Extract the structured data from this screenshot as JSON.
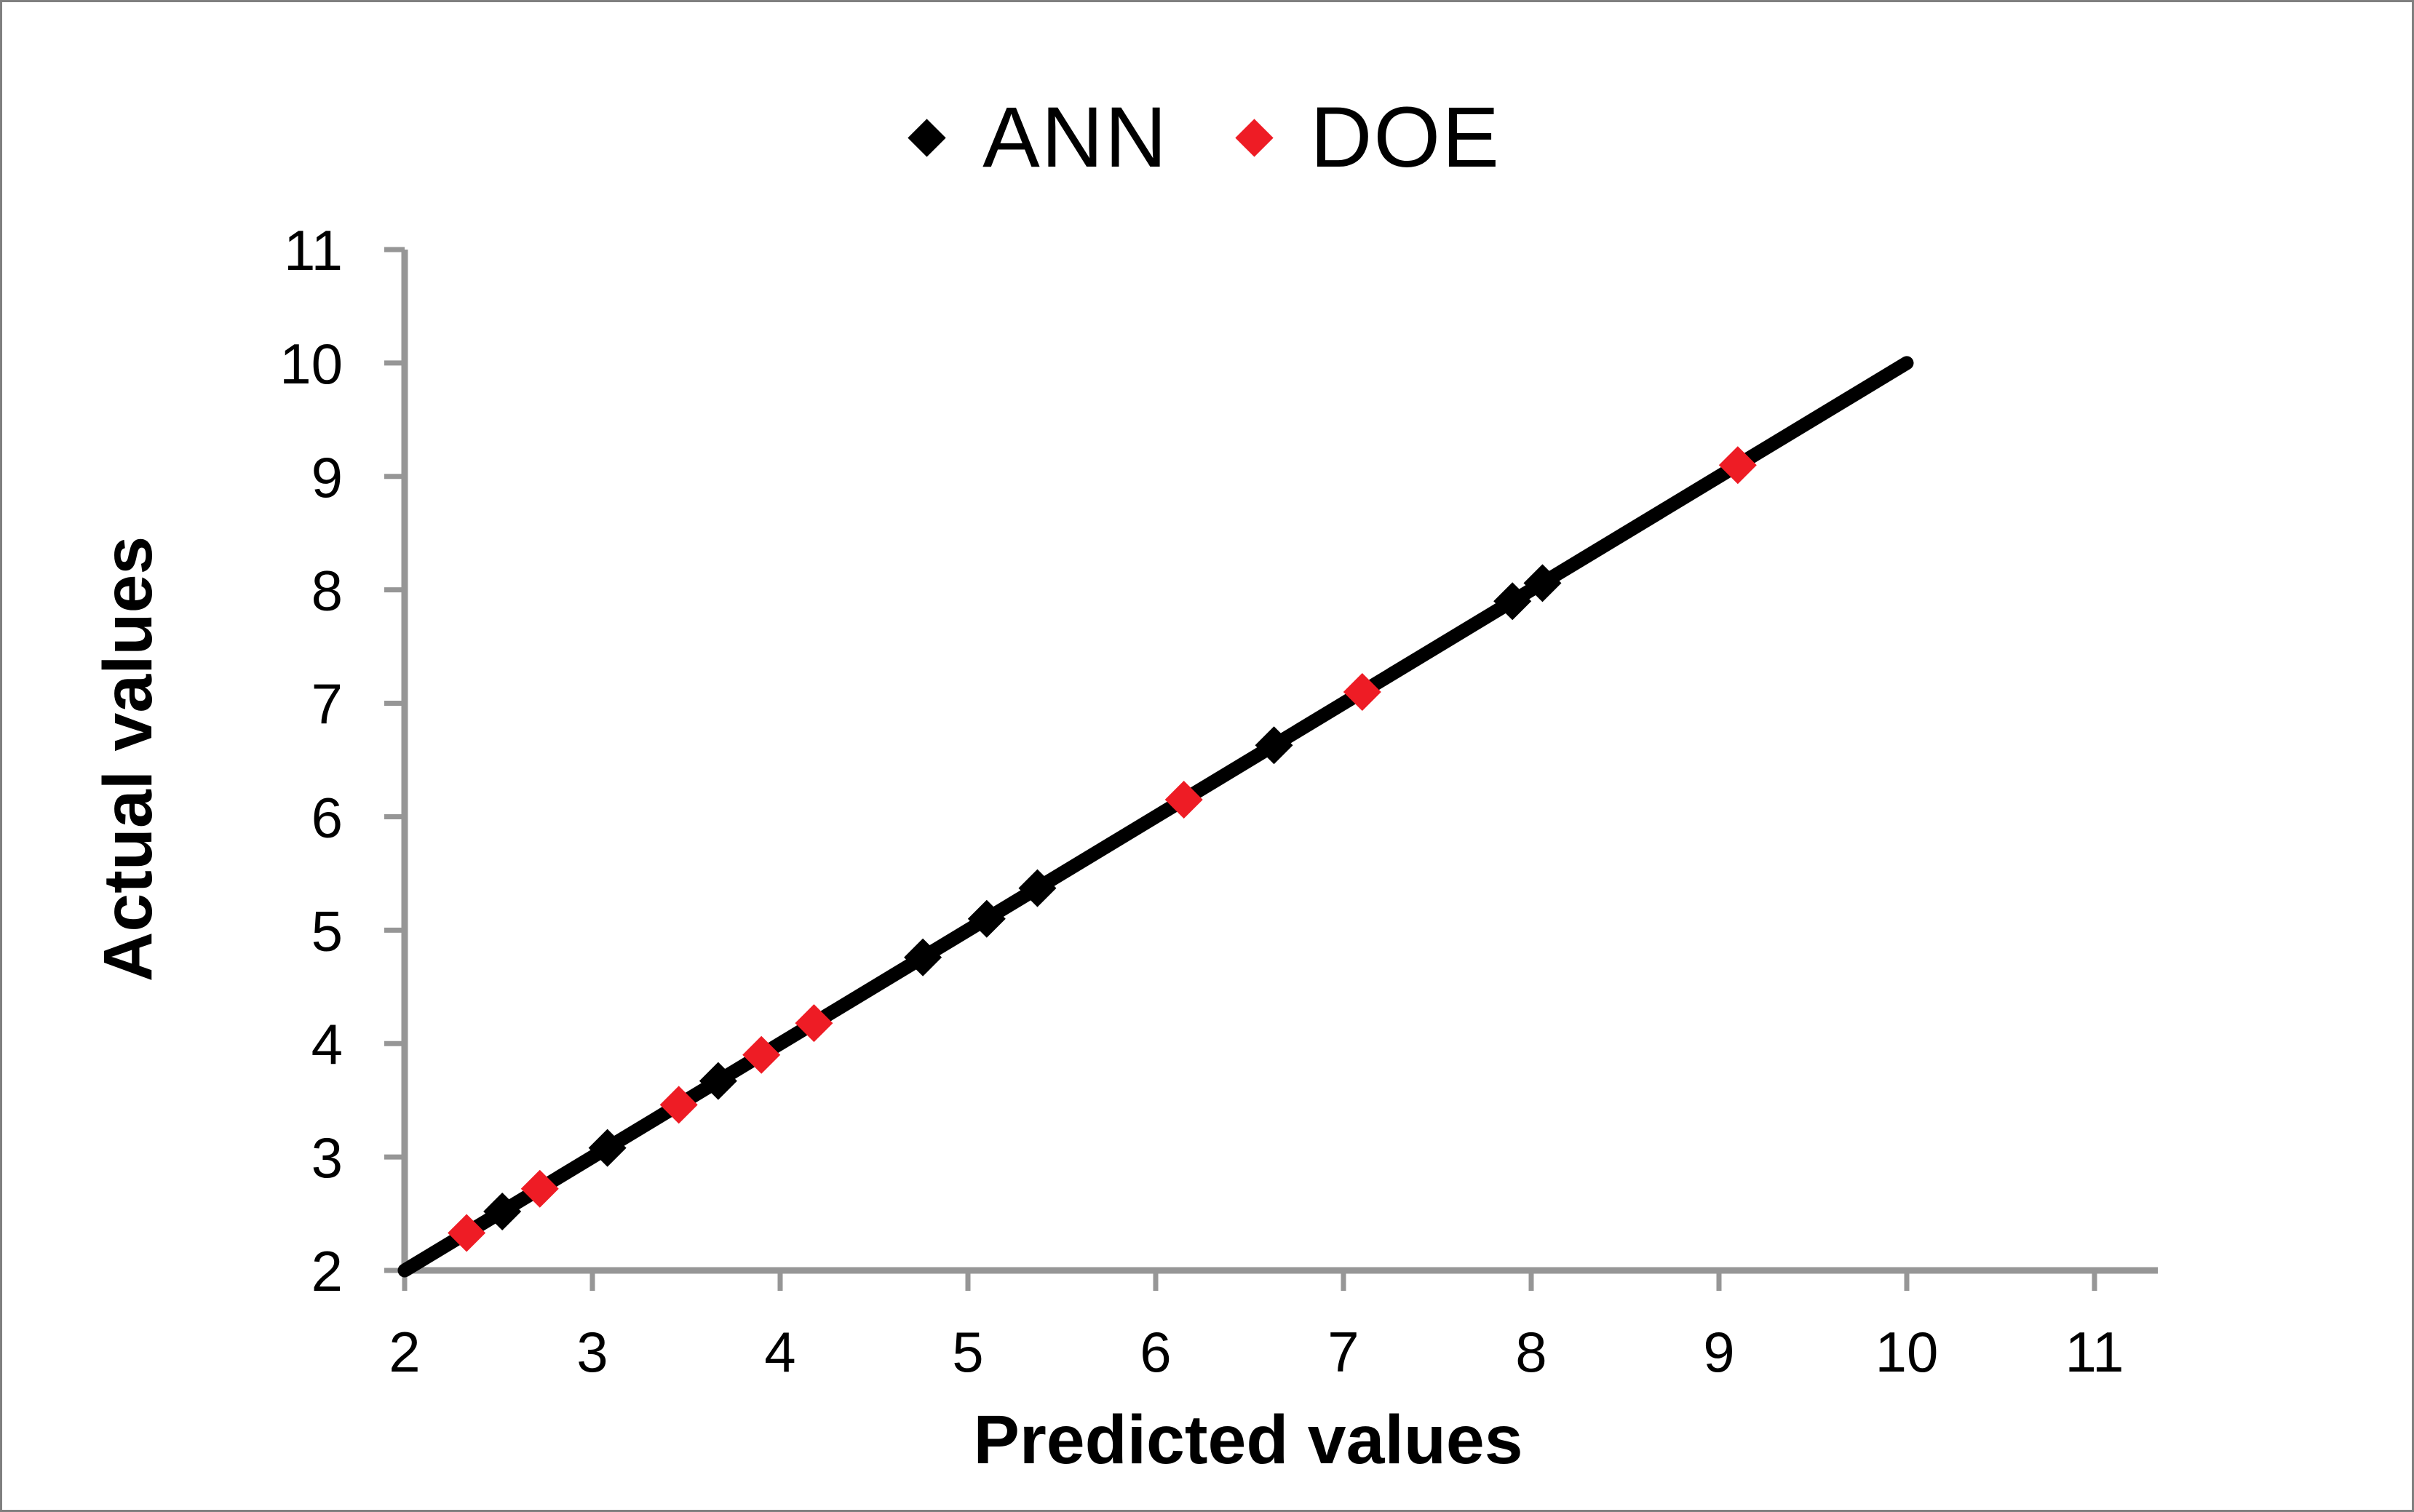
{
  "figure": {
    "kind": "scatter chart with identity line",
    "background": "#ffffff",
    "border_color": "#808080"
  },
  "legend": {
    "position": "top-center",
    "items": [
      {
        "label": "ANN",
        "color": "#000000",
        "marker": "diamond"
      },
      {
        "label": "DOE",
        "color": "#EE1C25",
        "marker": "diamond"
      }
    ]
  },
  "chart_data": {
    "type": "scatter",
    "title": "",
    "xlabel": "Predicted values",
    "ylabel": "Actual values",
    "xlim": [
      2,
      11
    ],
    "ylim": [
      2,
      11
    ],
    "x_ticks": [
      2,
      3,
      4,
      5,
      6,
      7,
      8,
      9,
      10,
      11
    ],
    "y_ticks": [
      2,
      3,
      4,
      5,
      6,
      7,
      8,
      9,
      10,
      11
    ],
    "grid": false,
    "legend_position": "top-center",
    "axis_color": "#969696",
    "tick_label_color": "#000000",
    "identity_line": {
      "x1": 2,
      "y1": 2,
      "x2": 10,
      "y2": 10,
      "color": "#000000"
    },
    "series": [
      {
        "name": "ANN",
        "marker": "diamond",
        "color": "#000000",
        "points": [
          [
            2.52,
            2.52
          ],
          [
            3.08,
            3.08
          ],
          [
            3.67,
            3.67
          ],
          [
            4.76,
            4.76
          ],
          [
            5.1,
            5.1
          ],
          [
            5.37,
            5.37
          ],
          [
            6.63,
            6.63
          ],
          [
            7.9,
            7.9
          ],
          [
            8.06,
            8.06
          ]
        ]
      },
      {
        "name": "DOE",
        "marker": "diamond",
        "color": "#EE1C25",
        "points": [
          [
            2.33,
            2.33
          ],
          [
            2.72,
            2.72
          ],
          [
            3.46,
            3.46
          ],
          [
            3.9,
            3.9
          ],
          [
            4.18,
            4.18
          ],
          [
            6.15,
            6.15
          ],
          [
            7.1,
            7.1
          ],
          [
            9.1,
            9.1
          ]
        ]
      }
    ]
  }
}
